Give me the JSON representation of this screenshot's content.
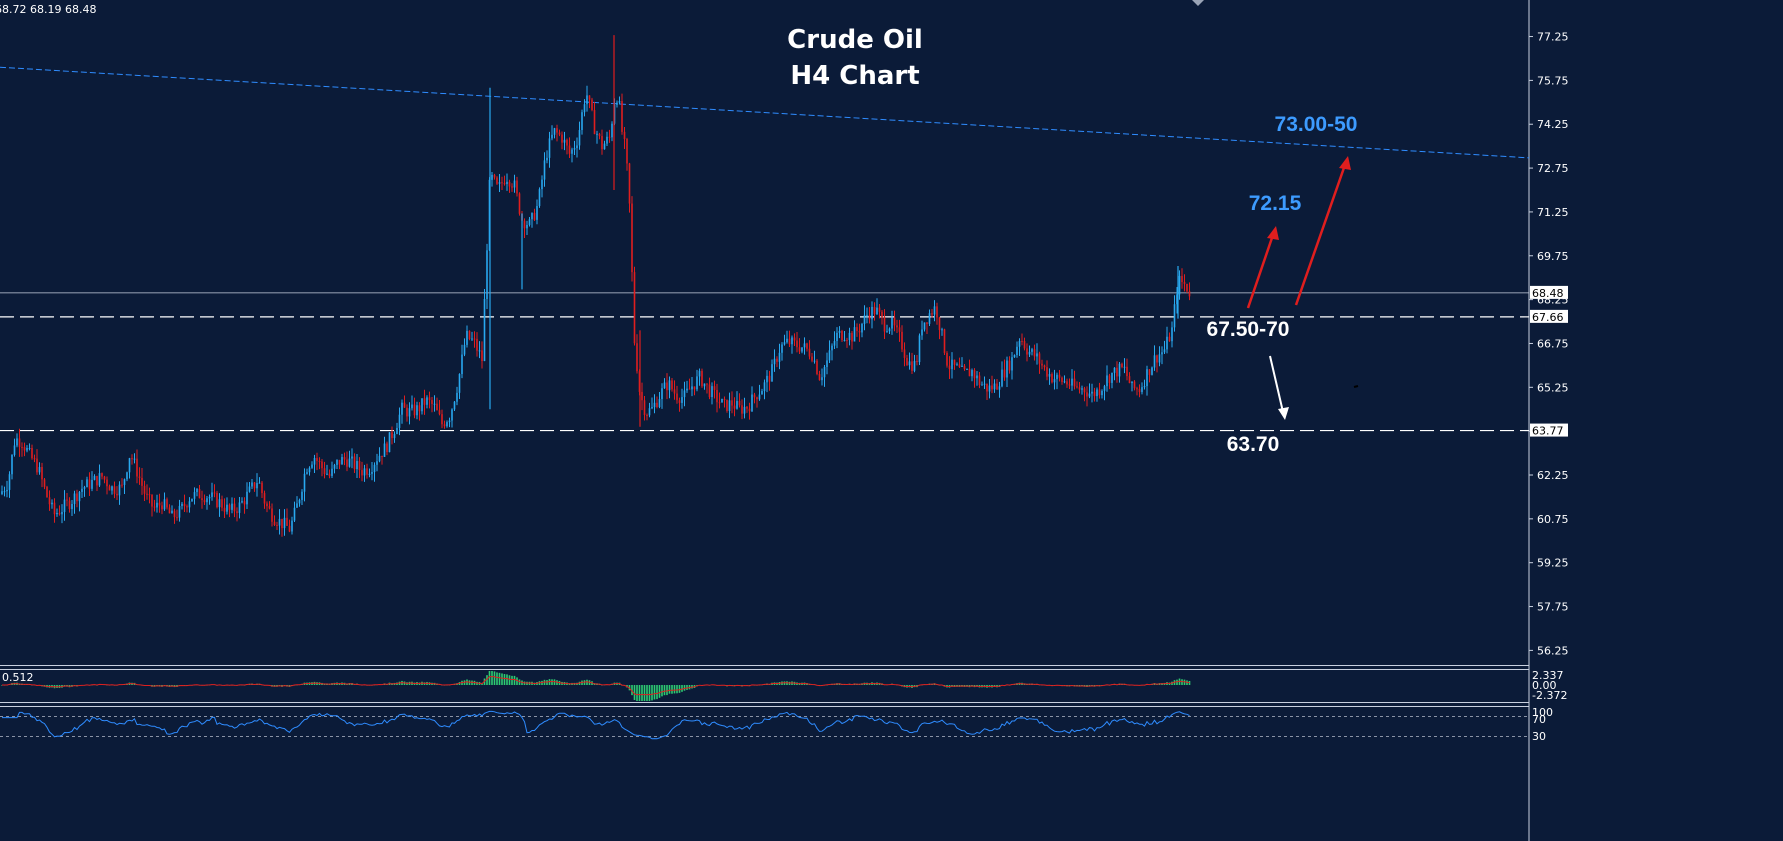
{
  "header": {
    "ohlc_text": "68.72 68.19 68.48"
  },
  "chart_data": {
    "type": "candlestick",
    "title": "Crude Oil",
    "subtitle": "H4 Chart",
    "ylim": [
      55.75,
      78.5
    ],
    "y_ticks": [
      "77.25",
      "75.75",
      "74.25",
      "72.75",
      "71.25",
      "69.75",
      "68.25",
      "66.75",
      "65.25",
      "63.75",
      "62.25",
      "60.75",
      "59.25",
      "57.75",
      "56.25"
    ],
    "y_tick_values": [
      77.25,
      75.75,
      74.25,
      72.75,
      71.25,
      69.75,
      68.25,
      66.75,
      65.25,
      63.75,
      62.25,
      60.75,
      59.25,
      57.75,
      56.25
    ],
    "current_price": {
      "value": 68.48,
      "label": "68.48"
    },
    "levels": [
      {
        "value": 67.66,
        "label": "67.66",
        "style": "dashed"
      },
      {
        "value": 63.77,
        "label": "63.77",
        "style": "dashed"
      }
    ],
    "trendline": {
      "from": 76.2,
      "to": 73.1,
      "color": "#2f8cff"
    },
    "annotations": [
      {
        "text": "73.00-50",
        "color": "#3d9bff"
      },
      {
        "text": "72.15",
        "color": "#3d9bff"
      },
      {
        "text": "67.50-70",
        "color": "#ffffff"
      },
      {
        "text": "63.70",
        "color": "#ffffff"
      }
    ],
    "colors": {
      "up": "#29a9f0",
      "down": "#e01e1e",
      "background": "#0b1b38",
      "grid": "#c8d0e0"
    },
    "anchors": [
      [
        0,
        61.6
      ],
      [
        8,
        62.0
      ],
      [
        15,
        63.5
      ],
      [
        22,
        63.4
      ],
      [
        30,
        62.9
      ],
      [
        38,
        62.5
      ],
      [
        46,
        61.6
      ],
      [
        54,
        60.9
      ],
      [
        62,
        61.1
      ],
      [
        72,
        61.4
      ],
      [
        82,
        61.8
      ],
      [
        92,
        62.0
      ],
      [
        102,
        62.2
      ],
      [
        112,
        61.8
      ],
      [
        122,
        61.8
      ],
      [
        130,
        63.0
      ],
      [
        138,
        62.3
      ],
      [
        146,
        61.5
      ],
      [
        154,
        61.1
      ],
      [
        162,
        61.3
      ],
      [
        172,
        60.8
      ],
      [
        180,
        61.0
      ],
      [
        190,
        61.5
      ],
      [
        200,
        61.6
      ],
      [
        210,
        61.5
      ],
      [
        220,
        61.3
      ],
      [
        230,
        61.0
      ],
      [
        240,
        61.2
      ],
      [
        250,
        61.7
      ],
      [
        258,
        62.1
      ],
      [
        266,
        61.2
      ],
      [
        274,
        60.8
      ],
      [
        282,
        60.6
      ],
      [
        290,
        60.4
      ],
      [
        298,
        61.3
      ],
      [
        306,
        62.5
      ],
      [
        314,
        62.9
      ],
      [
        322,
        62.5
      ],
      [
        330,
        62.2
      ],
      [
        338,
        62.7
      ],
      [
        346,
        62.8
      ],
      [
        354,
        62.6
      ],
      [
        362,
        62.4
      ],
      [
        370,
        62.5
      ],
      [
        378,
        62.9
      ],
      [
        386,
        63.2
      ],
      [
        394,
        63.8
      ],
      [
        402,
        64.5
      ],
      [
        410,
        64.4
      ],
      [
        418,
        64.5
      ],
      [
        426,
        64.8
      ],
      [
        434,
        64.6
      ],
      [
        442,
        64.0
      ],
      [
        450,
        64.3
      ],
      [
        458,
        65.4
      ],
      [
        466,
        67.0
      ],
      [
        474,
        66.8
      ],
      [
        482,
        66.2
      ],
      [
        490,
        72.5
      ],
      [
        498,
        72.0
      ],
      [
        506,
        72.5
      ],
      [
        514,
        72.2
      ],
      [
        522,
        71.0
      ],
      [
        530,
        70.8
      ],
      [
        538,
        71.5
      ],
      [
        546,
        73.2
      ],
      [
        554,
        74.0
      ],
      [
        562,
        73.8
      ],
      [
        570,
        73.2
      ],
      [
        578,
        73.8
      ],
      [
        586,
        75.4
      ],
      [
        594,
        74.2
      ],
      [
        602,
        73.5
      ],
      [
        610,
        73.8
      ],
      [
        614,
        75.0
      ],
      [
        618,
        75.3
      ],
      [
        622,
        74.0
      ],
      [
        626,
        73.2
      ],
      [
        630,
        71.2
      ],
      [
        634,
        67.0
      ],
      [
        640,
        65.0
      ],
      [
        646,
        64.4
      ],
      [
        652,
        64.5
      ],
      [
        660,
        65.0
      ],
      [
        668,
        65.4
      ],
      [
        676,
        65.0
      ],
      [
        684,
        64.9
      ],
      [
        692,
        65.3
      ],
      [
        700,
        65.6
      ],
      [
        708,
        65.2
      ],
      [
        716,
        64.9
      ],
      [
        724,
        64.6
      ],
      [
        732,
        64.7
      ],
      [
        740,
        64.5
      ],
      [
        748,
        64.6
      ],
      [
        756,
        65.0
      ],
      [
        764,
        65.3
      ],
      [
        772,
        65.8
      ],
      [
        780,
        66.6
      ],
      [
        788,
        66.8
      ],
      [
        796,
        66.7
      ],
      [
        804,
        66.6
      ],
      [
        812,
        66.4
      ],
      [
        820,
        65.6
      ],
      [
        828,
        66.2
      ],
      [
        836,
        67.0
      ],
      [
        844,
        67.1
      ],
      [
        852,
        67.0
      ],
      [
        860,
        67.3
      ],
      [
        868,
        67.8
      ],
      [
        876,
        67.9
      ],
      [
        884,
        67.4
      ],
      [
        892,
        67.4
      ],
      [
        900,
        66.9
      ],
      [
        908,
        66.1
      ],
      [
        916,
        66.0
      ],
      [
        922,
        67.4
      ],
      [
        930,
        67.8
      ],
      [
        936,
        68.0
      ],
      [
        942,
        67.0
      ],
      [
        948,
        66.0
      ],
      [
        956,
        65.9
      ],
      [
        964,
        65.7
      ],
      [
        972,
        65.8
      ],
      [
        980,
        65.4
      ],
      [
        988,
        65.2
      ],
      [
        996,
        65.3
      ],
      [
        1004,
        65.8
      ],
      [
        1012,
        66.2
      ],
      [
        1020,
        67.0
      ],
      [
        1028,
        66.5
      ],
      [
        1036,
        66.3
      ],
      [
        1044,
        65.9
      ],
      [
        1052,
        65.6
      ],
      [
        1060,
        65.5
      ],
      [
        1068,
        65.4
      ],
      [
        1076,
        65.2
      ],
      [
        1084,
        65.2
      ],
      [
        1092,
        65.0
      ],
      [
        1100,
        65.2
      ],
      [
        1108,
        65.6
      ],
      [
        1116,
        65.8
      ],
      [
        1124,
        65.9
      ],
      [
        1132,
        65.2
      ],
      [
        1140,
        65.2
      ],
      [
        1148,
        65.8
      ],
      [
        1156,
        66.3
      ],
      [
        1164,
        66.5
      ],
      [
        1172,
        67.2
      ],
      [
        1178,
        68.9
      ],
      [
        1184,
        68.8
      ],
      [
        1190,
        68.5
      ]
    ],
    "macd": {
      "ticks": [
        "2.337",
        "0.00",
        "-2.372"
      ],
      "label": "0.512"
    },
    "rsi": {
      "ticks": [
        "100",
        "70",
        "30"
      ]
    }
  }
}
